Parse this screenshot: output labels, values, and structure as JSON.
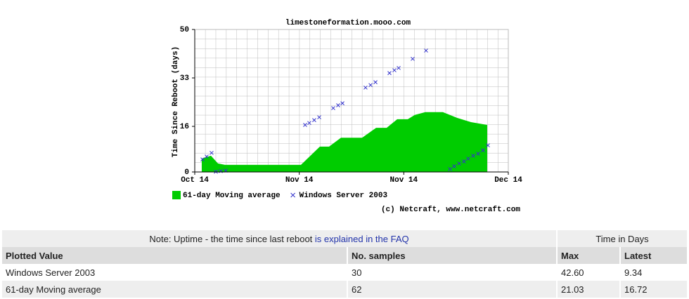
{
  "chart_data": {
    "type": "area",
    "title": "limestoneformation.mooo.com",
    "ylabel": "Time Since Reboot (days)",
    "credit": "(c) Netcraft, www.netcraft.com",
    "xlim": [
      0,
      3
    ],
    "xticks": [
      {
        "value": 0,
        "label": "Oct 14"
      },
      {
        "value": 1,
        "label": "Nov 14"
      },
      {
        "value": 2,
        "label": "Nov 14"
      },
      {
        "value": 3,
        "label": "Dec 14"
      }
    ],
    "ylim": [
      0,
      50
    ],
    "yticks": [
      0,
      16,
      33,
      50
    ],
    "grid": true,
    "legend": "bottom",
    "series": [
      {
        "name": "61-day Moving average",
        "type": "area",
        "color": "#00cc00",
        "x": [
          0.067,
          0.155,
          0.222,
          0.289,
          1.016,
          1.197,
          1.285,
          1.399,
          1.601,
          1.735,
          1.836,
          1.937,
          2.038,
          2.105,
          2.206,
          2.374,
          2.509,
          2.643,
          2.798
        ],
        "values": [
          4.7,
          5.7,
          3,
          2.5,
          2.5,
          8.9,
          8.9,
          12,
          12,
          15.5,
          15.5,
          18.5,
          18.5,
          20,
          21,
          21,
          19,
          17.5,
          16.5
        ]
      },
      {
        "name": "Windows Server 2003",
        "type": "scatter",
        "color": "#3333cc",
        "x": [
          0.074,
          0.114,
          0.161,
          0.202,
          0.249,
          0.296,
          1.056,
          1.096,
          1.143,
          1.191,
          1.325,
          1.372,
          1.413,
          1.634,
          1.682,
          1.729,
          1.863,
          1.91,
          1.951,
          2.085,
          2.213,
          2.442,
          2.482,
          2.529,
          2.576,
          2.616,
          2.664,
          2.711,
          2.758,
          2.805
        ],
        "values": [
          4.4,
          5.4,
          6.7,
          0.1,
          0.3,
          0.5,
          16.5,
          17.2,
          18.2,
          19.2,
          22.4,
          23.4,
          24.1,
          29.6,
          30.5,
          31.5,
          34.7,
          35.7,
          36.5,
          39.7,
          42.6,
          1,
          2,
          3,
          3.7,
          4.7,
          5.7,
          6.4,
          7.6,
          9.34
        ]
      }
    ]
  },
  "table": {
    "note": "Note: Uptime - the time since last reboot",
    "note_link": "is explained in the FAQ",
    "group_header": "Time in Days",
    "columns": [
      "Plotted Value",
      "No. samples",
      "Max",
      "Latest"
    ],
    "rows": [
      [
        "Windows Server 2003",
        "30",
        "42.60",
        "9.34"
      ],
      [
        "61-day Moving average",
        "62",
        "21.03",
        "16.72"
      ]
    ]
  }
}
